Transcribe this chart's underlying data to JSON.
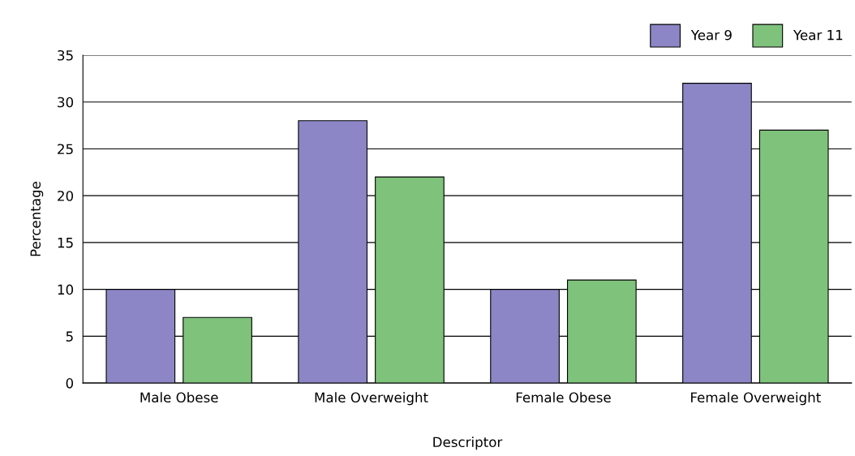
{
  "chart_data": {
    "type": "bar",
    "xlabel": "Descriptor",
    "ylabel": "Percentage",
    "categories": [
      "Male Obese",
      "Male Overweight",
      "Female Obese",
      "Female Overweight"
    ],
    "series": [
      {
        "name": "Year 9",
        "color": "#8c86c6",
        "values": [
          10,
          28,
          10,
          32
        ]
      },
      {
        "name": "Year 11",
        "color": "#7fc27c",
        "values": [
          7,
          22,
          11,
          27
        ]
      }
    ],
    "ylim": [
      0,
      35
    ],
    "yticks": [
      0,
      5,
      10,
      15,
      20,
      25,
      30,
      35
    ],
    "grid": "y",
    "legend": "top right"
  }
}
